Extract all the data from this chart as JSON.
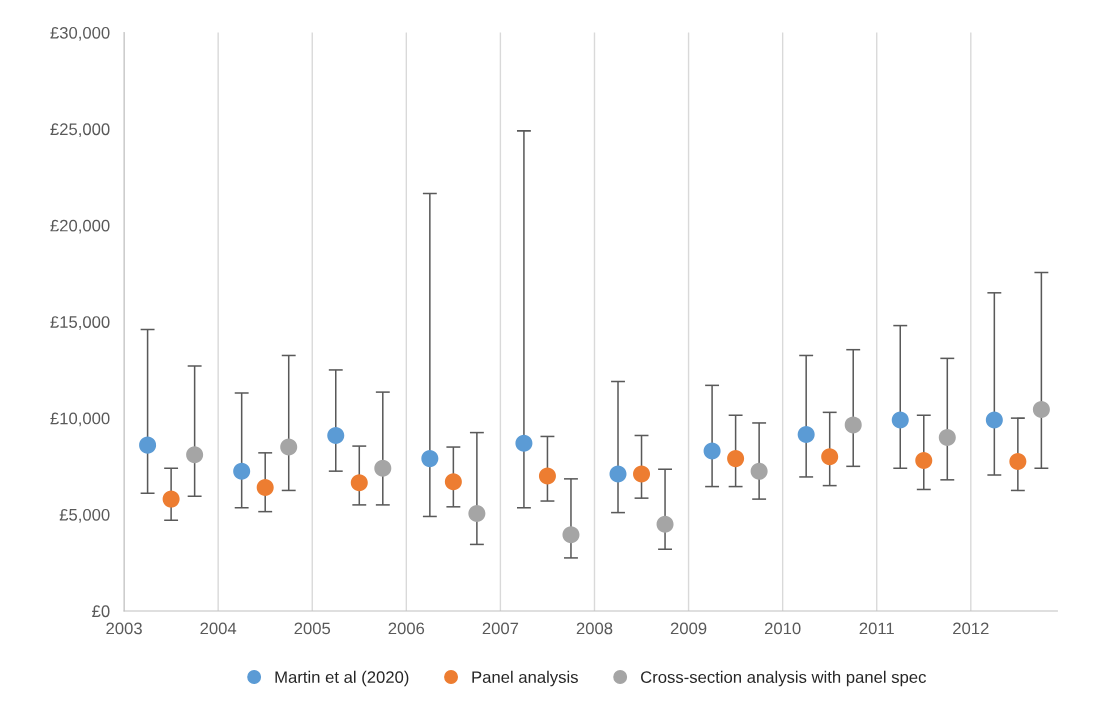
{
  "chart_data": {
    "type": "scatter",
    "xlim": [
      2003,
      2012.92
    ],
    "xticks": [
      2003,
      2004,
      2005,
      2006,
      2007,
      2008,
      2009,
      2010,
      2011,
      2012
    ],
    "ylim": [
      0,
      30000
    ],
    "yticks": [
      {
        "value": 0,
        "label": "£0"
      },
      {
        "value": 5000,
        "label": "£5,000"
      },
      {
        "value": 10000,
        "label": "£10,000"
      },
      {
        "value": 15000,
        "label": "£15,000"
      },
      {
        "value": 20000,
        "label": "£20,000"
      },
      {
        "value": 25000,
        "label": "£25,000"
      },
      {
        "value": 30000,
        "label": "£30,000"
      }
    ],
    "grid": "x",
    "legend": "bottom",
    "marker": "circle",
    "series": [
      {
        "name": "Martin et al (2020)",
        "color": "#5b9bd5",
        "x": [
          2003.25,
          2004.25,
          2005.25,
          2006.25,
          2007.25,
          2008.25,
          2009.25,
          2010.25,
          2011.25,
          2012.25
        ],
        "values": [
          8600,
          7250,
          9100,
          7900,
          8700,
          7100,
          8300,
          9150,
          9900,
          9900
        ],
        "errors": [
          [
            6100,
            14600
          ],
          [
            5350,
            11300
          ],
          [
            7250,
            12500
          ],
          [
            4900,
            21650
          ],
          [
            5350,
            24900
          ],
          [
            5100,
            11900
          ],
          [
            6450,
            11700
          ],
          [
            6950,
            13250
          ],
          [
            7400,
            14800
          ],
          [
            7050,
            16500
          ]
        ]
      },
      {
        "name": "Panel analysis",
        "color": "#ed7d31",
        "x": [
          2003.5,
          2004.5,
          2005.5,
          2006.5,
          2007.5,
          2008.5,
          2009.5,
          2010.5,
          2011.5,
          2012.5
        ],
        "values": [
          5800,
          6400,
          6650,
          6700,
          7000,
          7100,
          7900,
          8000,
          7800,
          7750
        ],
        "errors": [
          [
            4700,
            7400
          ],
          [
            5150,
            8200
          ],
          [
            5500,
            8550
          ],
          [
            5400,
            8500
          ],
          [
            5700,
            9050
          ],
          [
            5850,
            9100
          ],
          [
            6450,
            10150
          ],
          [
            6500,
            10300
          ],
          [
            6300,
            10150
          ],
          [
            6250,
            10000
          ]
        ]
      },
      {
        "name": "Cross-section analysis with panel spec",
        "color": "#a5a5a5",
        "x": [
          2003.75,
          2004.75,
          2005.75,
          2006.75,
          2007.75,
          2008.75,
          2009.75,
          2010.75,
          2011.75,
          2012.75
        ],
        "values": [
          8100,
          8500,
          7400,
          5050,
          3950,
          4500,
          7250,
          9650,
          9000,
          10450
        ],
        "errors": [
          [
            5950,
            12700
          ],
          [
            6250,
            13250
          ],
          [
            5500,
            11350
          ],
          [
            3450,
            9250
          ],
          [
            2750,
            6850
          ],
          [
            3200,
            7350
          ],
          [
            5800,
            9750
          ],
          [
            7500,
            13550
          ],
          [
            6800,
            13100
          ],
          [
            7400,
            17550
          ]
        ]
      }
    ]
  }
}
